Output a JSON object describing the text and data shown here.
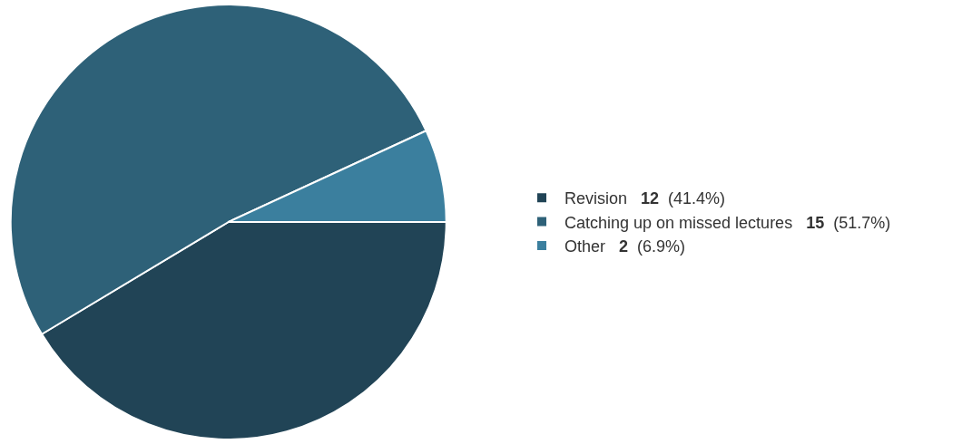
{
  "chart_data": {
    "type": "pie",
    "categories": [
      "Revision",
      "Catching up on missed lectures",
      "Other"
    ],
    "values": [
      12,
      15,
      2
    ],
    "value_labels": [
      "12 (41.4%)",
      "15 (51.7%)",
      "2 (6.9%)"
    ],
    "colors": [
      "#214456",
      "#2e6178",
      "#3b7f9e"
    ],
    "legend": "right"
  }
}
